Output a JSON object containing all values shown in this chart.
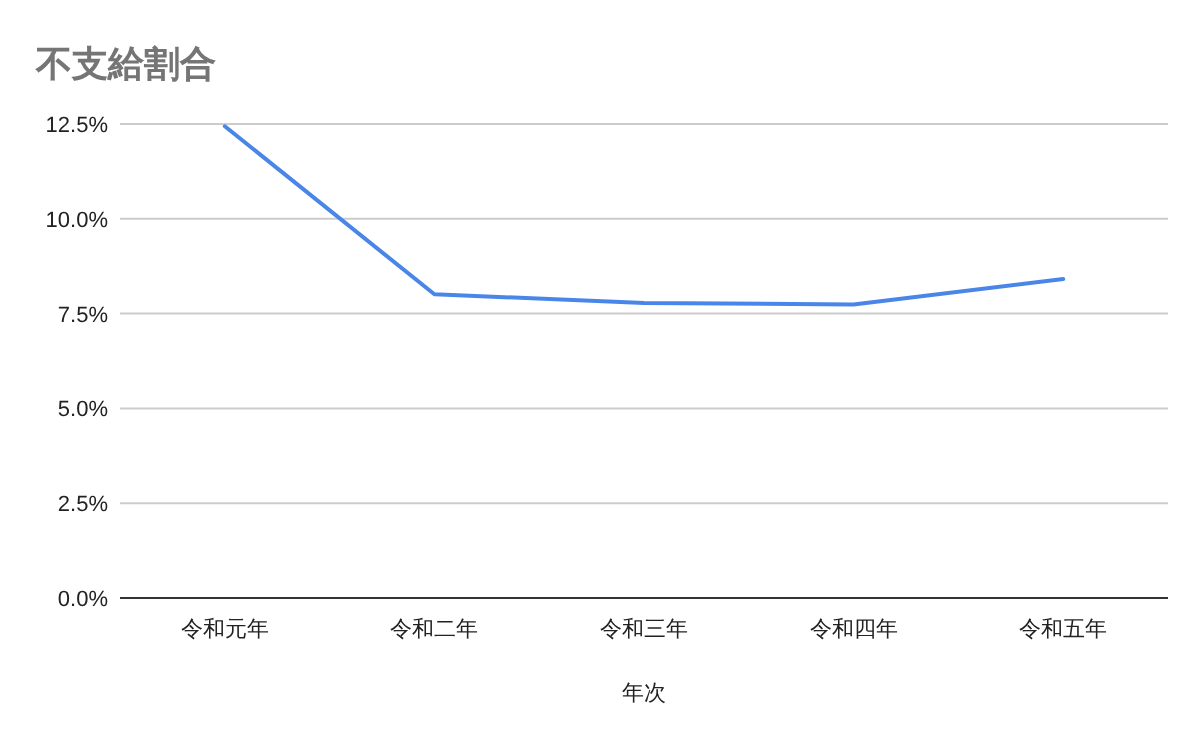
{
  "chart_data": {
    "type": "line",
    "title": "不支給割合",
    "xlabel": "年次",
    "categories": [
      "令和元年",
      "令和二年",
      "令和三年",
      "令和四年",
      "令和五年"
    ],
    "series": [
      {
        "color": "#4a86e8",
        "values": [
          12.44,
          8.01,
          7.78,
          7.74,
          8.41
        ]
      }
    ],
    "ylim": [
      0,
      12.5
    ],
    "yticks": [
      {
        "value": 0,
        "label": "0.0%"
      },
      {
        "value": 2.5,
        "label": "2.5%"
      },
      {
        "value": 5,
        "label": "5.0%"
      },
      {
        "value": 7.5,
        "label": "7.5%"
      },
      {
        "value": 10,
        "label": "10.0%"
      },
      {
        "value": 12.5,
        "label": "12.5%"
      }
    ],
    "grid": "y"
  }
}
